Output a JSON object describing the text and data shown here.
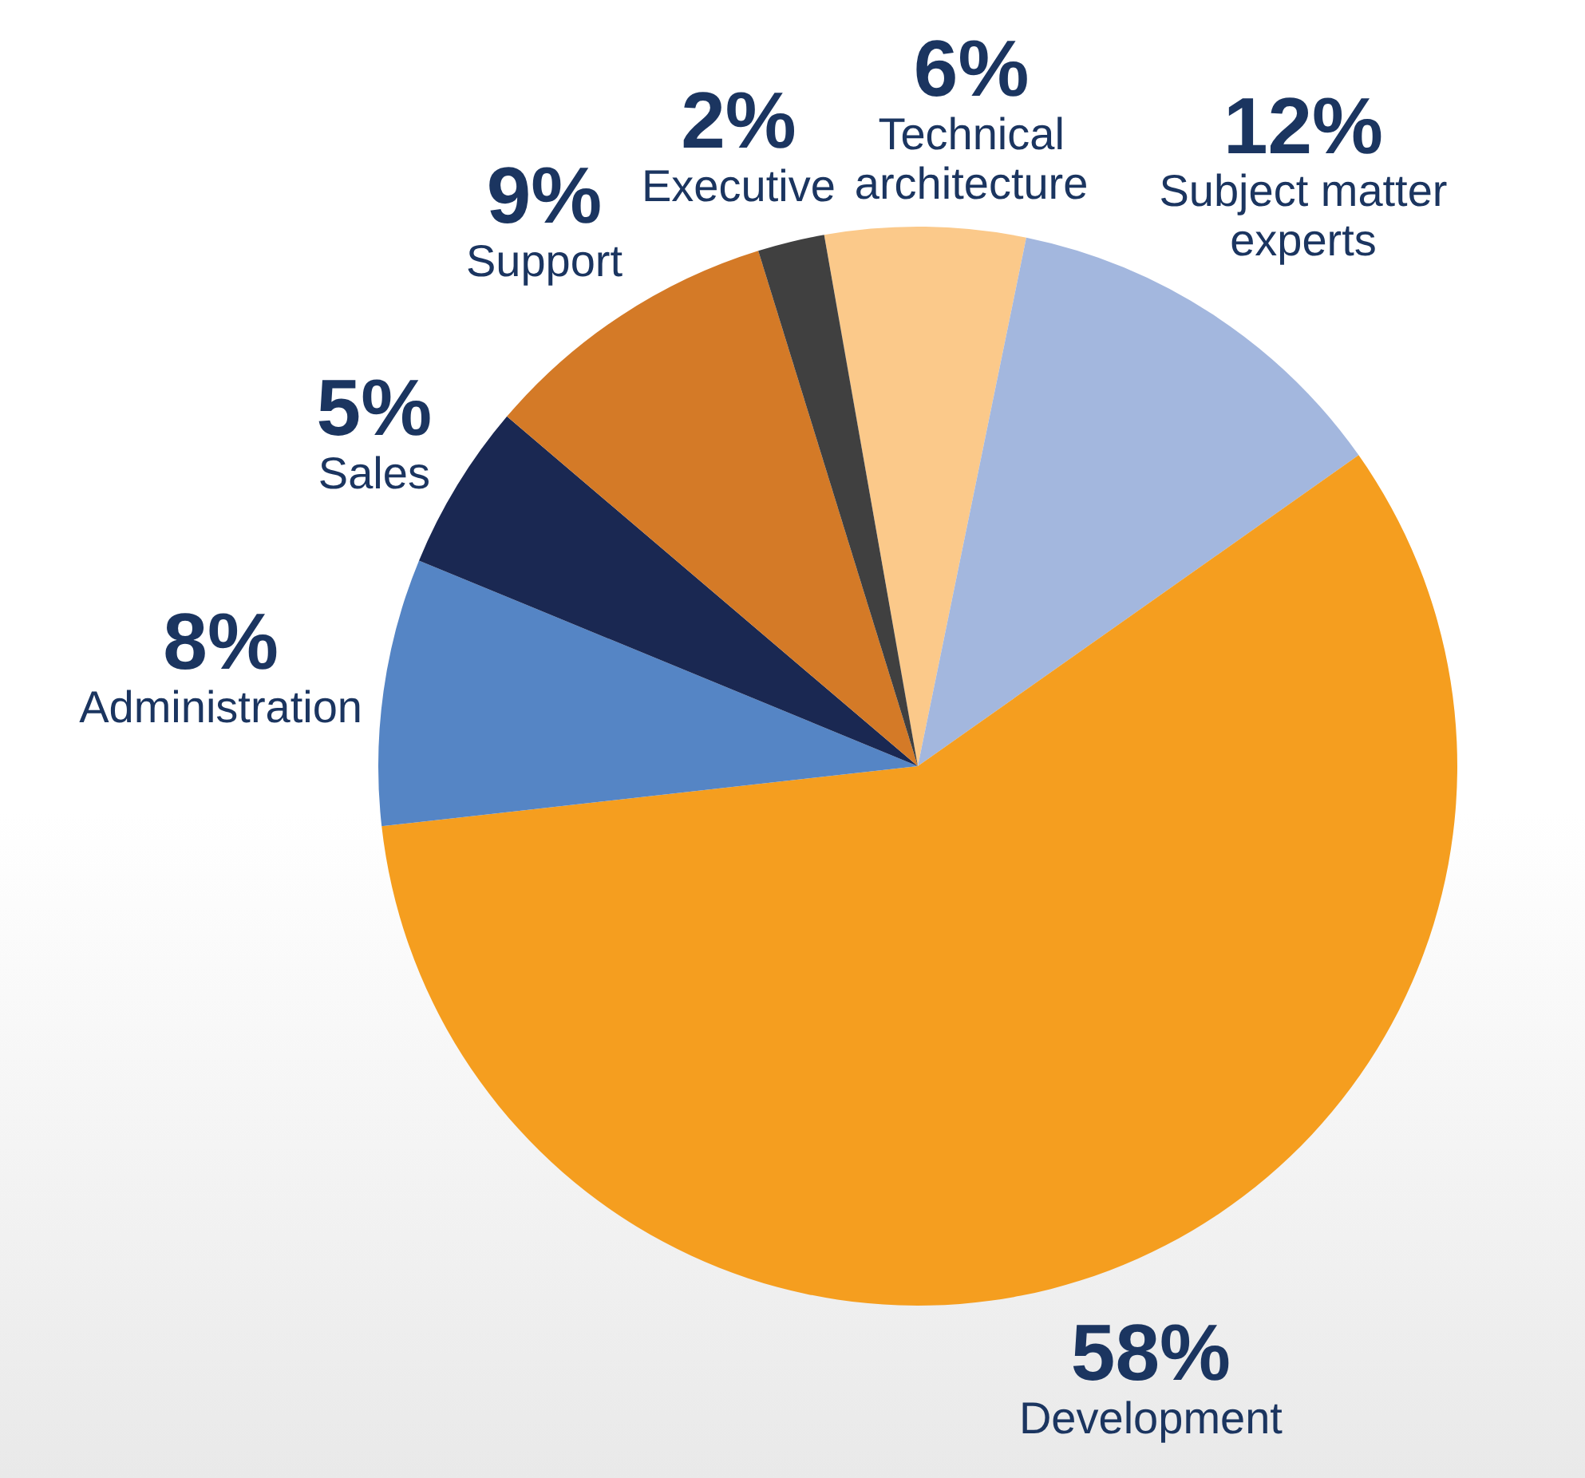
{
  "chart_data": {
    "type": "pie",
    "categories": [
      "Technical architecture",
      "Subject matter experts",
      "Development",
      "Administration",
      "Sales",
      "Support",
      "Executive"
    ],
    "values": [
      6,
      12,
      58,
      8,
      5,
      9,
      2
    ],
    "value_labels": [
      "6%",
      "12%",
      "58%",
      "8%",
      "5%",
      "9%",
      "2%"
    ],
    "colors": [
      "#fbc98a",
      "#a3b7de",
      "#f59e1f",
      "#5585c5",
      "#1a2852",
      "#d47a27",
      "#404040"
    ],
    "legend": false
  }
}
